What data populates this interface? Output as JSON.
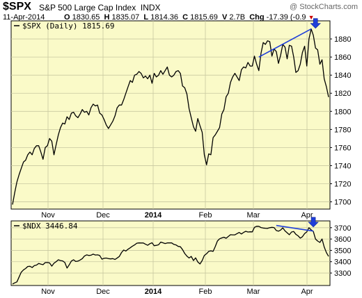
{
  "header": {
    "ticker": "$SPX",
    "name": "S&P 500 Large Cap Index",
    "exchange": "INDX",
    "credit": "@ StockCharts.com",
    "date": "11-Apr-2014",
    "open_label": "O",
    "open": "1830.65",
    "high_label": "H",
    "high": "1835.07",
    "low_label": "L",
    "low": "1814.36",
    "close_label": "C",
    "close": "1815.69",
    "volume_label": "V",
    "volume": "2.7B",
    "change_label": "Chg",
    "change": "-17.39 (-0.9",
    "down_color": "#cc0000"
  },
  "chart_data": [
    {
      "type": "line",
      "label": "$SPX (Daily) 1815.69",
      "ylim": [
        1692,
        1900
      ],
      "yticks": [
        1700,
        1720,
        1740,
        1760,
        1780,
        1800,
        1820,
        1840,
        1860,
        1880
      ],
      "xticks": [
        "Nov",
        "Dec",
        "2014",
        "Feb",
        "Mar",
        "Apr"
      ],
      "bold_xticks": [
        "2014"
      ],
      "grid": true,
      "line_color": "#000000",
      "background": "#fafac8",
      "values": [
        1697,
        1710,
        1722,
        1730,
        1737,
        1744,
        1746,
        1752,
        1755,
        1752,
        1759,
        1762,
        1762,
        1755,
        1747,
        1760,
        1762,
        1770,
        1767,
        1752,
        1763,
        1774,
        1782,
        1787,
        1786,
        1794,
        1791,
        1798,
        1799,
        1795,
        1793,
        1797,
        1802,
        1799,
        1800,
        1796,
        1804,
        1808,
        1806,
        1807,
        1798,
        1796,
        1791,
        1785,
        1781,
        1785,
        1789,
        1795,
        1804,
        1807,
        1807,
        1813,
        1820,
        1827,
        1834,
        1832,
        1840,
        1841,
        1844,
        1842,
        1837,
        1839,
        1836,
        1840,
        1831,
        1842,
        1838,
        1840,
        1845,
        1841,
        1845,
        1849,
        1840,
        1838,
        1840,
        1844,
        1845,
        1842,
        1828,
        1826,
        1819,
        1803,
        1793,
        1783,
        1778,
        1792,
        1784,
        1777,
        1752,
        1741,
        1753,
        1752,
        1771,
        1774,
        1778,
        1782,
        1797,
        1802,
        1816,
        1820,
        1832,
        1838,
        1842,
        1838,
        1834,
        1846,
        1849,
        1848,
        1854,
        1850,
        1850,
        1861,
        1852,
        1845,
        1864,
        1876,
        1874,
        1878,
        1877,
        1861,
        1869,
        1866,
        1853,
        1862,
        1874,
        1871,
        1858,
        1873,
        1872,
        1860,
        1843,
        1845,
        1852,
        1865,
        1872,
        1850,
        1880,
        1891,
        1884,
        1870,
        1868,
        1852,
        1857,
        1836,
        1827,
        1815.69
      ],
      "annotations": [
        {
          "type": "divergence-line",
          "color": "#1f3fd9",
          "from": [
            113,
            1860
          ],
          "to": [
            137,
            1891
          ]
        },
        {
          "type": "down-arrow",
          "color": "#1f3fd9",
          "at": [
            139,
            1891
          ]
        }
      ]
    },
    {
      "type": "line",
      "label": "$NDX 3446.84",
      "ylim": [
        3190,
        3760
      ],
      "yticks": [
        3300,
        3400,
        3500,
        3600,
        3700
      ],
      "xticks": [
        "Nov",
        "Dec",
        "2014",
        "Feb",
        "Mar",
        "Apr"
      ],
      "bold_xticks": [
        "2014"
      ],
      "grid": true,
      "line_color": "#000000",
      "background": "#fafac8",
      "values": [
        3203,
        3213,
        3222,
        3265,
        3307,
        3327,
        3340,
        3358,
        3360,
        3349,
        3365,
        3370,
        3384,
        3379,
        3374,
        3392,
        3393,
        3389,
        3361,
        3386,
        3400,
        3417,
        3410,
        3407,
        3393,
        3344,
        3372,
        3406,
        3417,
        3402,
        3405,
        3415,
        3427,
        3450,
        3460,
        3455,
        3457,
        3467,
        3459,
        3460,
        3455,
        3422,
        3430,
        3432,
        3427,
        3425,
        3427,
        3420,
        3433,
        3446,
        3481,
        3503,
        3494,
        3510,
        3523,
        3537,
        3548,
        3563,
        3566,
        3565,
        3565,
        3554,
        3545,
        3559,
        3567,
        3541,
        3544,
        3549,
        3573,
        3567,
        3560,
        3566,
        3566,
        3566,
        3553,
        3548,
        3535,
        3532,
        3507,
        3472,
        3449,
        3433,
        3447,
        3410,
        3434,
        3398,
        3380,
        3410,
        3455,
        3470,
        3491,
        3496,
        3491,
        3533,
        3582,
        3602,
        3610,
        3616,
        3607,
        3623,
        3638,
        3637,
        3637,
        3648,
        3658,
        3645,
        3658,
        3668,
        3662,
        3664,
        3663,
        3703,
        3713,
        3712,
        3701,
        3697,
        3695,
        3694,
        3700,
        3703,
        3701,
        3675,
        3669,
        3679,
        3699,
        3672,
        3655,
        3638,
        3662,
        3666,
        3642,
        3628,
        3608,
        3620,
        3648,
        3664,
        3700,
        3681,
        3666,
        3600,
        3582,
        3570,
        3600,
        3530,
        3480,
        3446.84
      ],
      "annotations": [
        {
          "type": "divergence-line",
          "color": "#1f3fd9",
          "from": [
            121,
            3720
          ],
          "to": [
            138,
            3670
          ]
        },
        {
          "type": "down-arrow",
          "color": "#1f3fd9",
          "at": [
            138,
            3700
          ]
        }
      ]
    }
  ]
}
